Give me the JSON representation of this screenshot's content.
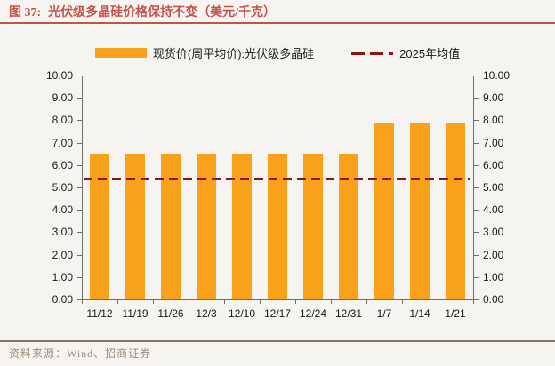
{
  "figure": {
    "title_prefix": "图 37:",
    "title": "光伏级多晶硅价格保持不变（美元/千克）",
    "source": "资料来源：Wind、招商证券"
  },
  "legend": {
    "items": [
      {
        "label": "现货价(周平均价):光伏级多晶硅",
        "marker": "bar-swatch",
        "color": "#F9A11B"
      },
      {
        "label": "2025年均值",
        "marker": "dashed-line",
        "color": "#8B1414"
      }
    ]
  },
  "chart_data": {
    "type": "bar",
    "title": "光伏级多晶硅价格保持不变（美元/千克）",
    "categories": [
      "11/12",
      "11/19",
      "11/26",
      "12/3",
      "12/10",
      "12/17",
      "12/24",
      "12/31",
      "1/7",
      "1/14",
      "1/21"
    ],
    "series": [
      {
        "name": "现货价(周平均价):光伏级多晶硅",
        "type": "bar",
        "color": "#F9A11B",
        "values": [
          6.5,
          6.5,
          6.5,
          6.5,
          6.5,
          6.5,
          6.5,
          6.5,
          7.9,
          7.9,
          7.9
        ]
      }
    ],
    "reference_line": {
      "name": "2025年均值",
      "value": 5.4,
      "style": "dashed",
      "color": "#8B1414"
    },
    "ylim": [
      0,
      10
    ],
    "yticks": [
      "0.00",
      "1.00",
      "2.00",
      "3.00",
      "4.00",
      "5.00",
      "6.00",
      "7.00",
      "8.00",
      "9.00",
      "10.00"
    ],
    "dual_axis": true,
    "grid": false,
    "legend_position": "top",
    "xlabel": "",
    "ylabel": ""
  },
  "colors": {
    "title": "#BE554B",
    "bar": "#F9A11B",
    "avg_line": "#8B1414",
    "axis": "#6E6E6E",
    "tick_label": "#1a1a1a",
    "footer_rule": "#877560",
    "footer_text": "#9B8C7C",
    "background": "#F6F4F1"
  }
}
